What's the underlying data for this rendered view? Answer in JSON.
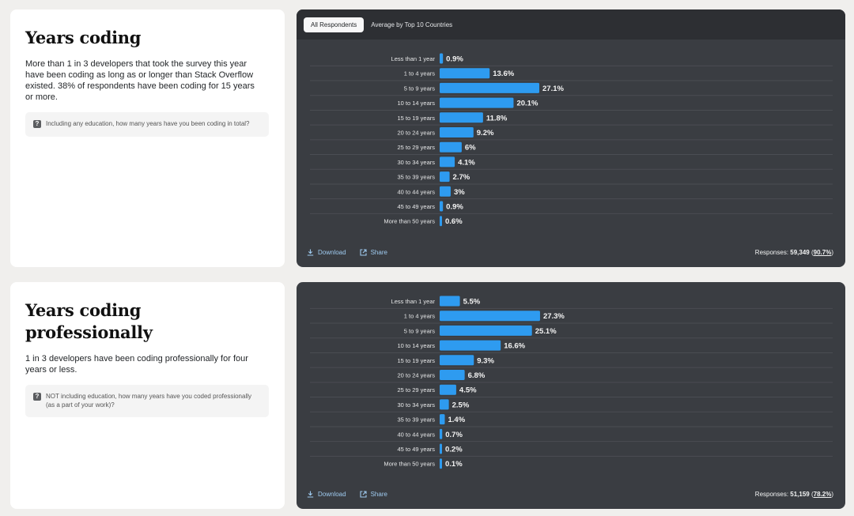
{
  "sections": [
    {
      "title": "Years coding",
      "summary": "More than 1 in 3 developers that took the survey this year have been coding as long as or longer than Stack Overflow existed. 38% of respondents have been coding for 15 years or more.",
      "question": "Including any education, how many years have you been coding in total?",
      "tabs": [
        "All Respondents",
        "Average by Top 10 Countries"
      ],
      "actions": {
        "download": "Download",
        "share": "Share"
      },
      "responses": {
        "label": "Responses:",
        "count": "59,349",
        "percent": "90.7%"
      }
    },
    {
      "title": "Years coding professionally",
      "summary": "1 in 3 developers have been coding professionally for four years or less.",
      "question": "NOT including education, how many years have you coded professionally (as a part of your work)?",
      "actions": {
        "download": "Download",
        "share": "Share"
      },
      "responses": {
        "label": "Responses:",
        "count": "51,159",
        "percent": "78.2%"
      }
    }
  ],
  "colors": {
    "bar": "#2e9bf0",
    "card": "#3a3d42",
    "tabbar": "#2d2f33",
    "link": "#9fcbf0"
  },
  "icons": {
    "question": "question-mark-icon",
    "download": "download-icon",
    "share": "share-icon"
  },
  "chart_data": [
    {
      "type": "bar",
      "orientation": "horizontal",
      "categories": [
        "Less than 1 year",
        "1 to 4 years",
        "5 to 9 years",
        "10 to 14 years",
        "15 to 19 years",
        "20 to 24 years",
        "25 to 29 years",
        "30 to 34 years",
        "35 to 39 years",
        "40 to 44 years",
        "45 to 49 years",
        "More than 50 years"
      ],
      "values": [
        0.9,
        13.6,
        27.1,
        20.1,
        11.8,
        9.2,
        6,
        4.1,
        2.7,
        3,
        0.9,
        0.6
      ],
      "labels": [
        "0.9%",
        "13.6%",
        "27.1%",
        "20.1%",
        "11.8%",
        "9.2%",
        "6%",
        "4.1%",
        "2.7%",
        "3%",
        "0.9%",
        "0.6%"
      ],
      "unit": "%"
    },
    {
      "type": "bar",
      "orientation": "horizontal",
      "categories": [
        "Less than 1 year",
        "1 to 4 years",
        "5 to 9 years",
        "10 to 14 years",
        "15 to 19 years",
        "20 to 24 years",
        "25 to 29 years",
        "30 to 34 years",
        "35 to 39 years",
        "40 to 44 years",
        "45 to 49 years",
        "More than 50 years"
      ],
      "values": [
        5.5,
        27.3,
        25.1,
        16.6,
        9.3,
        6.8,
        4.5,
        2.5,
        1.4,
        0.7,
        0.2,
        0.1
      ],
      "labels": [
        "5.5%",
        "27.3%",
        "25.1%",
        "16.6%",
        "9.3%",
        "6.8%",
        "4.5%",
        "2.5%",
        "1.4%",
        "0.7%",
        "0.2%",
        "0.1%"
      ],
      "unit": "%"
    }
  ]
}
